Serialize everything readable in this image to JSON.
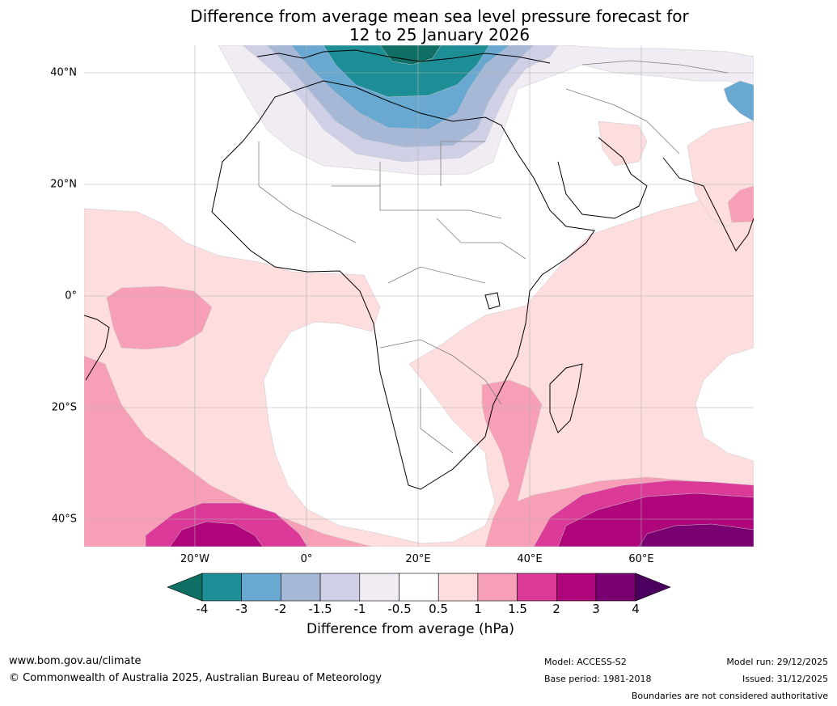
{
  "title": {
    "line1": "Difference from average mean sea level pressure forecast for",
    "line2": "12 to 25 January 2026"
  },
  "axes": {
    "lon_labels": [
      "20°W",
      "0°",
      "20°E",
      "40°E",
      "60°E"
    ],
    "lat_labels": [
      "40°N",
      "20°N",
      "0°",
      "20°S",
      "40°S"
    ]
  },
  "colorbar": {
    "ticks": [
      "-4",
      "-3",
      "-2",
      "-1.5",
      "-1",
      "-0.5",
      "0.5",
      "1",
      "1.5",
      "2",
      "3",
      "4"
    ],
    "colors": [
      "#0f6f64",
      "#1e8e96",
      "#69a8d1",
      "#a7b8d7",
      "#cfd0e6",
      "#f1ecf3",
      "#ffffff",
      "#fdddde",
      "#f89fb8",
      "#db3a98",
      "#b0067c",
      "#7a0071",
      "#4b0060"
    ],
    "label": "Difference from average (hPa)"
  },
  "footer": {
    "website": "www.bom.gov.au/climate",
    "copyright": "© Commonwealth of Australia 2025, Australian Bureau of Meteorology",
    "model": "Model: ACCESS-S2",
    "base_period": "Base period: 1981-2018",
    "model_run": "Model run: 29/12/2025",
    "issued": "Issued: 31/12/2025",
    "boundaries": "Boundaries are not considered authoritative"
  }
}
